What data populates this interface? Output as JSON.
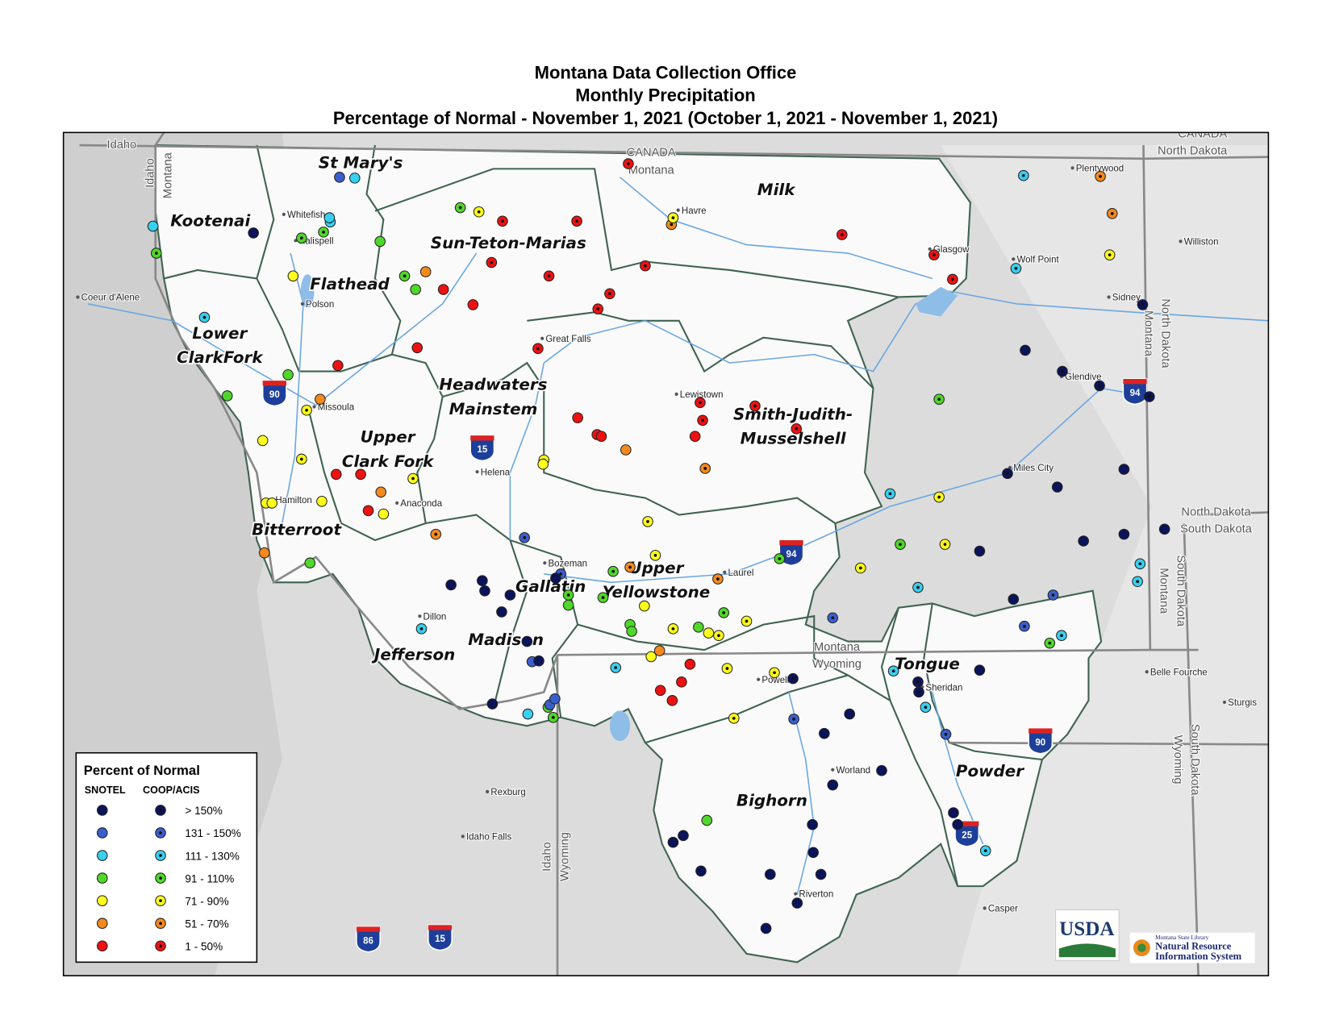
{
  "title": [
    "Montana Data Collection Office",
    "Monthly Precipitation",
    "Percentage of Normal - November 1, 2021 (October 1, 2021 - November 1, 2021)"
  ],
  "basins": [
    [
      "St Mary's"
    ],
    [
      "Kootenai"
    ],
    [
      "Milk"
    ],
    [
      "Sun-Teton-Marias"
    ],
    [
      "Flathead"
    ],
    [
      "Lower",
      "ClarkFork"
    ],
    [
      "Headwaters",
      "Mainstem"
    ],
    [
      "Smith-Judith-",
      "Musselshell"
    ],
    [
      "Upper",
      "Clark Fork"
    ],
    [
      "Bitterroot"
    ],
    [
      "Upper",
      "Yellowstone"
    ],
    [
      "Gallatin"
    ],
    [
      "Madison"
    ],
    [
      "Jefferson"
    ],
    [
      "Tongue"
    ],
    [
      "Bighorn"
    ],
    [
      "Powder"
    ]
  ],
  "places": [
    "Whitefish",
    "Kalispell",
    "Polson",
    "Coeur d'Alene",
    "Missoula",
    "Hamilton",
    "Anaconda",
    "Helena",
    "Great Falls",
    "Havre",
    "Glasgow",
    "Plentywood",
    "Wolf Point",
    "Williston",
    "Sidney",
    "Glendive",
    "Lewistown",
    "Miles City",
    "Bozeman",
    "Laurel",
    "Dillon",
    "Powell",
    "Sheridan",
    "Worland",
    "Riverton",
    "Casper",
    "Rexburg",
    "Idaho Falls",
    "Belle Fourche",
    "Sturgis"
  ],
  "states": [
    "Idaho",
    "Idaho",
    "Montana",
    "CANADA",
    "Montana",
    "CANADA",
    "North Dakota",
    "North Dakota",
    "Montana",
    "North Dakota",
    "South Dakota",
    "Montana",
    "South Dakota",
    "Montana",
    "Wyoming",
    "South Dakota",
    "Wyoming",
    "Idaho",
    "Wyoming"
  ],
  "highways": [
    "90",
    "94",
    "15",
    "94",
    "90",
    "25",
    "86",
    "15"
  ],
  "legend": {
    "title": "Percent of Normal",
    "columns": [
      "SNOTEL",
      "COOP/ACIS"
    ],
    "classes": [
      {
        "label": "> 150%",
        "color": "#0b1458"
      },
      {
        "label": "131 - 150%",
        "color": "#3a5fcd"
      },
      {
        "label": "111 - 130%",
        "color": "#38d0f0"
      },
      {
        "label": "91 - 110%",
        "color": "#4fd82a"
      },
      {
        "label": "71 - 90%",
        "color": "#ffff1a"
      },
      {
        "label": "51 - 70%",
        "color": "#f58a1c"
      },
      {
        "label": "1 - 50%",
        "color": "#ee1111"
      }
    ]
  },
  "logos": [
    "USDA",
    "Montana State Library",
    "Natural Resource",
    "Information System"
  ]
}
